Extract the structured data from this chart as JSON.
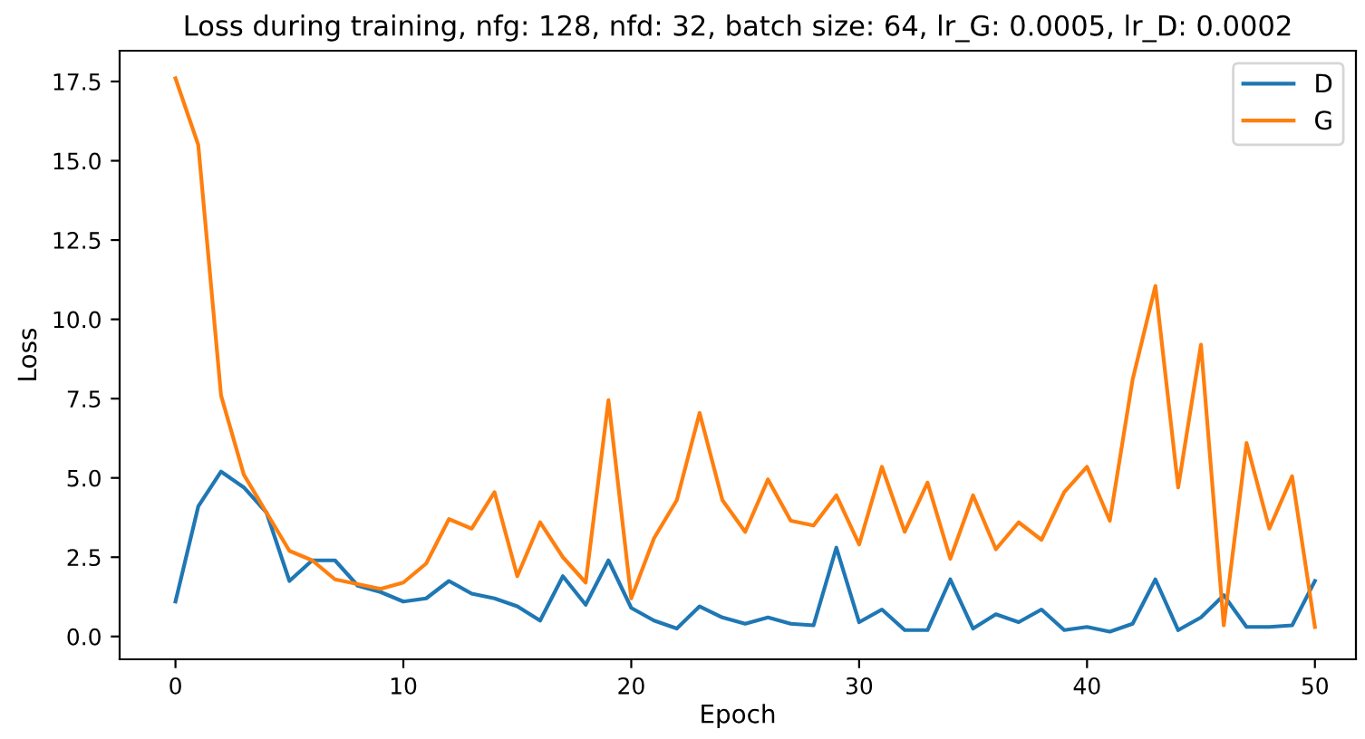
{
  "chart_data": {
    "type": "line",
    "title": "Loss during training, nfg: 128, nfd: 32, batch size: 64, lr_G: 0.0005, lr_D: 0.0002",
    "xlabel": "Epoch",
    "ylabel": "Loss",
    "x": [
      0,
      1,
      2,
      3,
      4,
      5,
      6,
      7,
      8,
      9,
      10,
      11,
      12,
      13,
      14,
      15,
      16,
      17,
      18,
      19,
      20,
      21,
      22,
      23,
      24,
      25,
      26,
      27,
      28,
      29,
      30,
      31,
      32,
      33,
      34,
      35,
      36,
      37,
      38,
      39,
      40,
      41,
      42,
      43,
      44,
      45,
      46,
      47,
      48,
      49,
      50
    ],
    "series": [
      {
        "name": "D",
        "color": "#1f77b4",
        "values": [
          1.1,
          4.1,
          5.2,
          4.7,
          3.9,
          1.75,
          2.4,
          2.4,
          1.6,
          1.4,
          1.1,
          1.2,
          1.75,
          1.35,
          1.2,
          0.95,
          0.5,
          1.9,
          1.0,
          2.4,
          0.9,
          0.5,
          0.25,
          0.95,
          0.6,
          0.4,
          0.6,
          0.4,
          0.35,
          2.8,
          0.45,
          0.85,
          0.2,
          0.2,
          1.8,
          0.25,
          0.7,
          0.45,
          0.85,
          0.2,
          0.3,
          0.15,
          0.4,
          1.8,
          0.2,
          0.6,
          1.3,
          0.3,
          0.3,
          0.35,
          1.75
        ]
      },
      {
        "name": "G",
        "color": "#ff7f0e",
        "values": [
          17.6,
          15.5,
          7.6,
          5.1,
          3.9,
          2.7,
          2.4,
          1.8,
          1.65,
          1.5,
          1.7,
          2.3,
          3.7,
          3.4,
          4.55,
          1.9,
          3.6,
          2.5,
          1.7,
          7.45,
          1.2,
          3.1,
          4.3,
          7.05,
          4.3,
          3.3,
          4.95,
          3.65,
          3.5,
          4.45,
          2.9,
          5.35,
          3.3,
          4.85,
          2.45,
          4.45,
          2.75,
          3.6,
          3.05,
          4.55,
          5.35,
          3.65,
          8.1,
          11.05,
          4.7,
          9.2,
          0.35,
          6.1,
          3.4,
          5.05,
          0.3
        ]
      }
    ],
    "xlim": [
      -2.45,
      51.8
    ],
    "ylim": [
      -0.72,
      18.47
    ],
    "xticks": [
      0,
      10,
      20,
      30,
      40,
      50
    ],
    "yticks": [
      {
        "value": 0,
        "label": "0.0"
      },
      {
        "value": 2.5,
        "label": "2.5"
      },
      {
        "value": 5,
        "label": "5.0"
      },
      {
        "value": 7.5,
        "label": "7.5"
      },
      {
        "value": 10,
        "label": "10.0"
      },
      {
        "value": 12.5,
        "label": "12.5"
      },
      {
        "value": 15,
        "label": "15.0"
      },
      {
        "value": 17.5,
        "label": "17.5"
      }
    ],
    "legend": "top right"
  }
}
